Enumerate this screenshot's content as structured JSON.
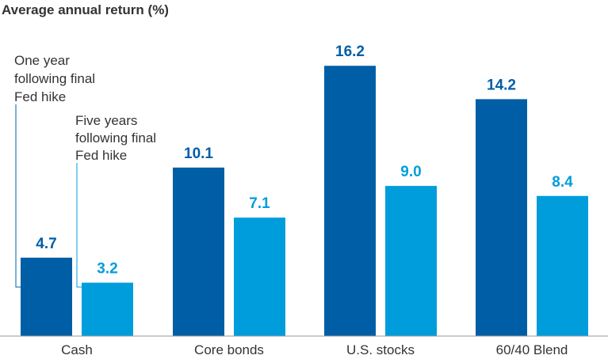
{
  "chart_data": {
    "type": "bar",
    "title": "Average annual return (%)",
    "categories": [
      "Cash",
      "Core bonds",
      "U.S. stocks",
      "60/40 Blend"
    ],
    "series": [
      {
        "name": "One year following final Fed hike",
        "values": [
          4.7,
          10.1,
          16.2,
          14.2
        ],
        "color": "#005EA6"
      },
      {
        "name": "Five years following final Fed hike",
        "values": [
          3.2,
          7.1,
          9.0,
          8.4
        ],
        "color": "#009DDC"
      }
    ],
    "ylim": [
      0,
      17.3
    ],
    "grid": false,
    "legend": "inline annotations on first category",
    "annotation_lines": [
      [
        "One year",
        "following final",
        "Fed hike"
      ],
      [
        "Five years",
        "following final",
        "Fed hike"
      ]
    ]
  }
}
